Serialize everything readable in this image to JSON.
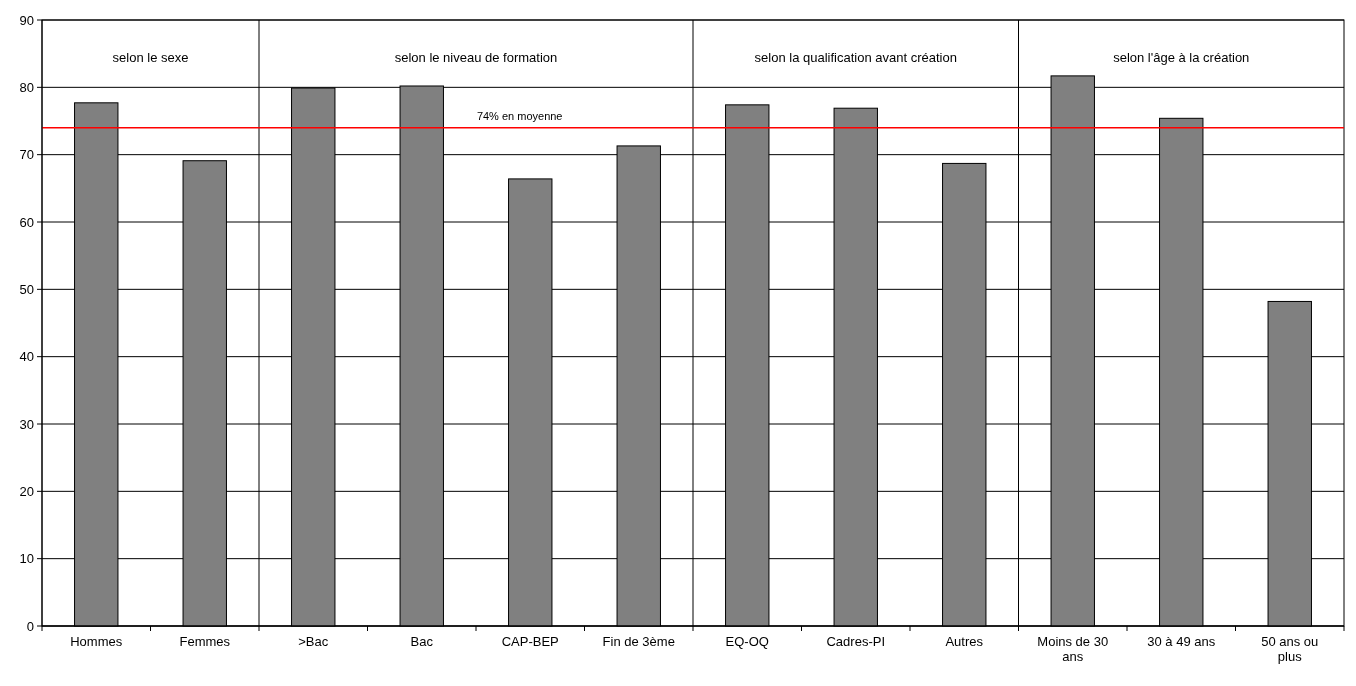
{
  "chart_data": {
    "type": "bar",
    "categories": [
      "Hommes",
      "Femmes",
      ">Bac",
      "Bac",
      "CAP-BEP",
      "Fin de 3ème",
      "EQ-OQ",
      "Cadres-PI",
      "Autres",
      "Moins de 30 ans",
      "30 à 49 ans",
      "50 ans ou plus"
    ],
    "values": [
      77.7,
      69.1,
      79.9,
      80.2,
      66.4,
      71.3,
      77.4,
      76.9,
      68.7,
      81.7,
      75.4,
      48.2
    ],
    "color": "#808080",
    "ylim": [
      0,
      90
    ],
    "yticks": [
      0,
      10,
      20,
      30,
      40,
      50,
      60,
      70,
      80,
      90
    ],
    "grid": "y",
    "ref_lines": [
      {
        "axis": "y",
        "value": 74,
        "label": "74% en moyenne",
        "color": "#ff0000"
      }
    ],
    "annotations": [
      "selon le sexe",
      "selon le niveau de formation",
      "selon la qualification avant création",
      "selon l'âge à la création"
    ]
  }
}
